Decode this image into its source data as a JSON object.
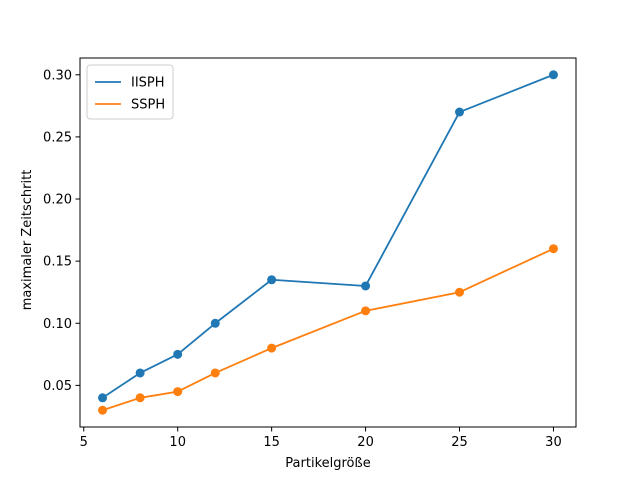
{
  "chart_data": {
    "type": "line",
    "xlabel": "Partikelgröße",
    "ylabel": "maximaler Zeitschritt",
    "x": [
      6,
      8,
      10,
      12,
      15,
      20,
      25,
      30
    ],
    "series": [
      {
        "name": "IISPH",
        "color": "#1f77b4",
        "values": [
          0.04,
          0.06,
          0.075,
          0.1,
          0.135,
          0.13,
          0.27,
          0.3
        ]
      },
      {
        "name": "SSPH",
        "color": "#ff7f0e",
        "values": [
          0.03,
          0.04,
          0.045,
          0.06,
          0.08,
          0.11,
          0.125,
          0.16
        ]
      }
    ],
    "xlim": [
      4.8,
      31.2
    ],
    "ylim": [
      0.0165,
      0.3135
    ],
    "xticks": [
      5,
      10,
      15,
      20,
      25,
      30
    ],
    "xtick_labels": [
      "5",
      "10",
      "15",
      "20",
      "25",
      "30"
    ],
    "yticks": [
      0.05,
      0.1,
      0.15,
      0.2,
      0.25,
      0.3
    ],
    "ytick_labels": [
      "0.05",
      "0.10",
      "0.15",
      "0.20",
      "0.25",
      "0.30"
    ],
    "grid": false,
    "legend_position": "upper-left",
    "markers": "circle"
  }
}
